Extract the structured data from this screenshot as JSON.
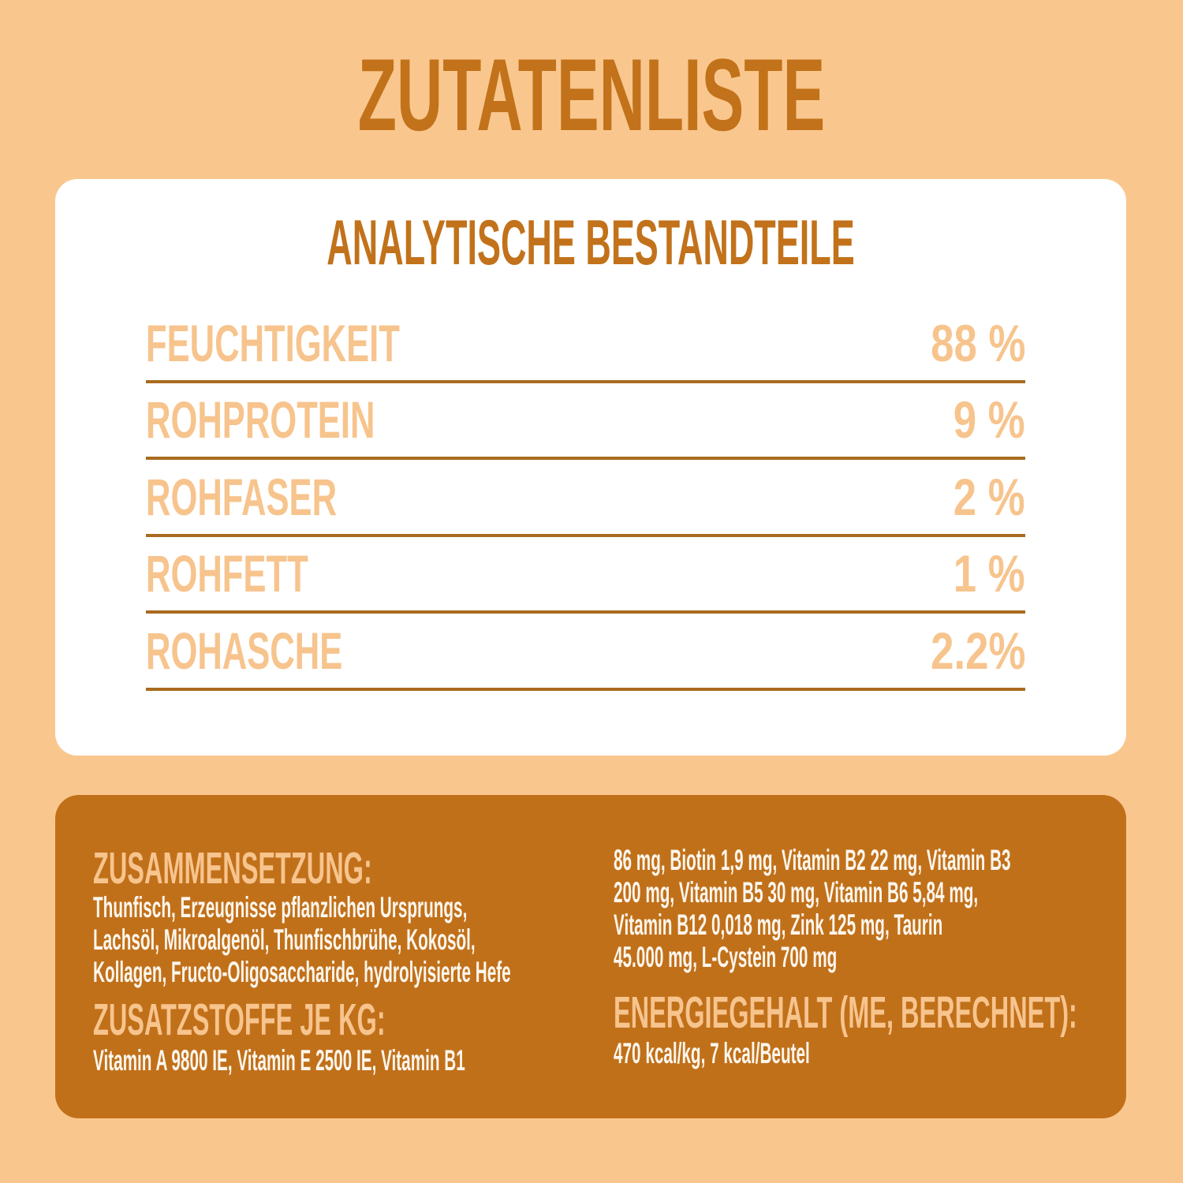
{
  "title": "ZUTATENLISTE",
  "colors": {
    "background": "#F9C78E",
    "card_white": "#FFFFFF",
    "heading_orange": "#C2721A",
    "text_light": "#F7C48D",
    "divider": "#A96B1F",
    "panel_brown": "#C1701A",
    "text_white": "#FBF6ED"
  },
  "analysis": {
    "heading": "ANALYTISCHE BESTANDTEILE",
    "rows": [
      {
        "label": "FEUCHTIGKEIT",
        "value": "88 %"
      },
      {
        "label": "ROHPROTEIN",
        "value": "9 %"
      },
      {
        "label": "ROHFASER",
        "value": "2 %"
      },
      {
        "label": "ROHFETT",
        "value": "1 %"
      },
      {
        "label": "ROHASCHE",
        "value": "2.2%"
      }
    ]
  },
  "details": {
    "composition": {
      "heading": "ZUSAMMENSETZUNG:",
      "text": "Thunfisch, Erzeugnisse pflanzlichen Ursprungs,\nLachsöl, Mikroalgenöl, Thunfischbrühe, Kokosöl,\nKollagen, Fructo-Oligosaccharide, hydrolyisierte Hefe"
    },
    "additives": {
      "heading": "ZUSATZSTOFFE JE KG:",
      "text_left": "Vitamin A 9800 IE, Vitamin E 2500 IE, Vitamin B1",
      "text_right": "86 mg, Biotin 1,9 mg, Vitamin B2 22 mg, Vitamin B3\n200 mg, Vitamin B5 30 mg, Vitamin B6 5,84 mg,\nVitamin B12 0,018 mg, Zink 125 mg, Taurin\n45.000 mg, L-Cystein 700 mg"
    },
    "energy": {
      "heading": "ENERGIEGEHALT (ME, BERECHNET):",
      "text": "470 kcal/kg, 7 kcal/Beutel"
    }
  }
}
